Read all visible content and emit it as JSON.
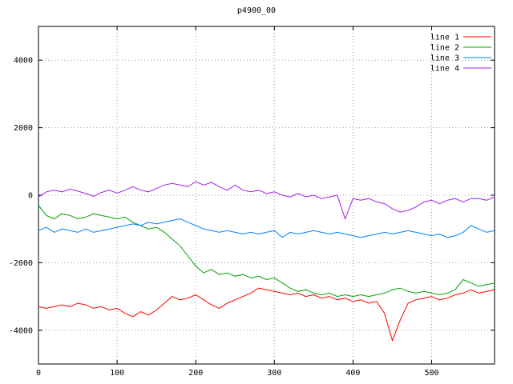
{
  "chart_data": {
    "type": "line",
    "title": "p4900_00",
    "xlabel": "",
    "ylabel": "",
    "xlim": [
      0,
      580
    ],
    "ylim": [
      -5000,
      5000
    ],
    "xticks": [
      0,
      100,
      200,
      300,
      400,
      500
    ],
    "yticks": [
      -4000,
      -2000,
      0,
      2000,
      4000
    ],
    "grid": true,
    "legend_position": "top-right",
    "background": "#ffffff",
    "border_color": "#000000",
    "grid_color": "#9a9a9a",
    "x_start": 0,
    "x_step": 10,
    "series": [
      {
        "name": "line 1",
        "color": "#ff0000",
        "values": [
          -3300,
          -3350,
          -3300,
          -3250,
          -3300,
          -3200,
          -3250,
          -3350,
          -3300,
          -3400,
          -3350,
          -3500,
          -3600,
          -3450,
          -3550,
          -3400,
          -3200,
          -3000,
          -3100,
          -3050,
          -2950,
          -3100,
          -3250,
          -3350,
          -3200,
          -3100,
          -3000,
          -2900,
          -2750,
          -2800,
          -2850,
          -2900,
          -2950,
          -2900,
          -3000,
          -2950,
          -3050,
          -3000,
          -3100,
          -3050,
          -3150,
          -3100,
          -3200,
          -3150,
          -3500,
          -4300,
          -3700,
          -3200,
          -3100,
          -3050,
          -3000,
          -3100,
          -3050,
          -2950,
          -2900,
          -2800,
          -2900,
          -2850,
          -2800
        ]
      },
      {
        "name": "line 2",
        "color": "#00a000",
        "values": [
          -300,
          -600,
          -700,
          -550,
          -600,
          -700,
          -650,
          -550,
          -600,
          -650,
          -700,
          -650,
          -800,
          -900,
          -1000,
          -950,
          -1100,
          -1300,
          -1500,
          -1800,
          -2100,
          -2300,
          -2200,
          -2350,
          -2300,
          -2400,
          -2350,
          -2450,
          -2400,
          -2500,
          -2450,
          -2600,
          -2750,
          -2850,
          -2800,
          -2900,
          -2950,
          -2900,
          -3000,
          -2950,
          -3000,
          -2950,
          -3000,
          -2950,
          -2900,
          -2800,
          -2750,
          -2850,
          -2900,
          -2850,
          -2900,
          -2950,
          -2900,
          -2800,
          -2500,
          -2600,
          -2700,
          -2650,
          -2600
        ]
      },
      {
        "name": "line 3",
        "color": "#0080ff",
        "values": [
          -1050,
          -950,
          -1100,
          -1000,
          -1050,
          -1100,
          -1000,
          -1100,
          -1050,
          -1000,
          -950,
          -900,
          -850,
          -900,
          -800,
          -850,
          -800,
          -750,
          -700,
          -800,
          -900,
          -1000,
          -1050,
          -1100,
          -1050,
          -1100,
          -1150,
          -1100,
          -1150,
          -1100,
          -1050,
          -1250,
          -1100,
          -1150,
          -1100,
          -1050,
          -1100,
          -1150,
          -1100,
          -1150,
          -1200,
          -1250,
          -1200,
          -1150,
          -1100,
          -1150,
          -1100,
          -1050,
          -1100,
          -1150,
          -1200,
          -1150,
          -1250,
          -1200,
          -1100,
          -900,
          -1000,
          -1100,
          -1050
        ]
      },
      {
        "name": "line 4",
        "color": "#a020f0",
        "values": [
          -50,
          100,
          150,
          100,
          180,
          120,
          50,
          -30,
          80,
          150,
          60,
          150,
          250,
          150,
          100,
          200,
          300,
          350,
          300,
          250,
          400,
          300,
          380,
          250,
          150,
          300,
          150,
          100,
          150,
          50,
          100,
          0,
          -50,
          50,
          -50,
          0,
          -100,
          -50,
          0,
          -700,
          -100,
          -150,
          -100,
          -200,
          -250,
          -400,
          -500,
          -450,
          -350,
          -200,
          -150,
          -250,
          -150,
          -100,
          -200,
          -100,
          -100,
          -150,
          -50
        ]
      }
    ]
  }
}
